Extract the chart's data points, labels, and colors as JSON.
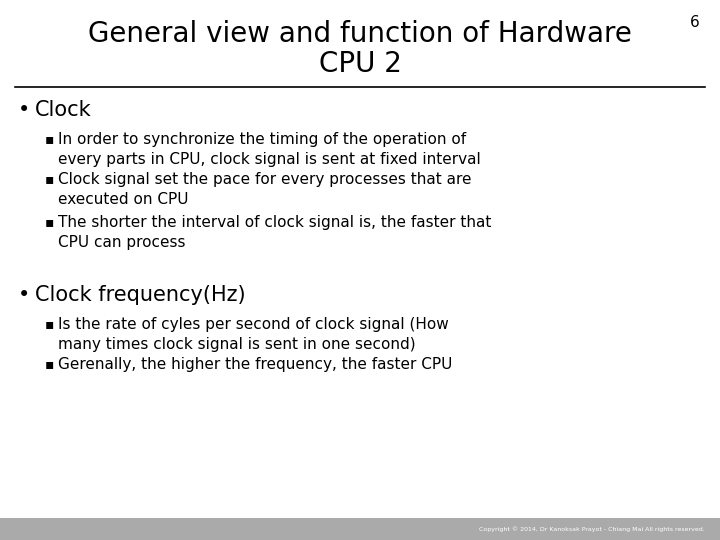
{
  "title_line1": "General view and function of Hardware",
  "title_line2": "CPU 2",
  "page_number": "6",
  "background_color": "#ffffff",
  "title_color": "#000000",
  "text_color": "#000000",
  "footer_text": "Copyright © 2014, Dr Kanoksak Prayot - Chiang Mai All rights reserved.",
  "title_fontsize": 20,
  "page_num_fontsize": 11,
  "bullet1_fontsize": 15,
  "subbullet_fontsize": 11,
  "bullet1_text": "Clock",
  "bullet1_sub": [
    "In order to synchronize the timing of the operation of\nevery parts in CPU, clock signal is sent at fixed interval",
    "Clock signal set the pace for every processes that are\nexecuted on CPU",
    "The shorter the interval of clock signal is, the faster that\nCPU can process"
  ],
  "bullet2_text": "Clock frequency(Hz)",
  "bullet2_sub": [
    "Is the rate of cyles per second of clock signal (How\nmany times clock signal is sent in one second)",
    "Gerenally, the higher the frequency, the faster CPU"
  ],
  "separator_gray": "#aaaaaa"
}
